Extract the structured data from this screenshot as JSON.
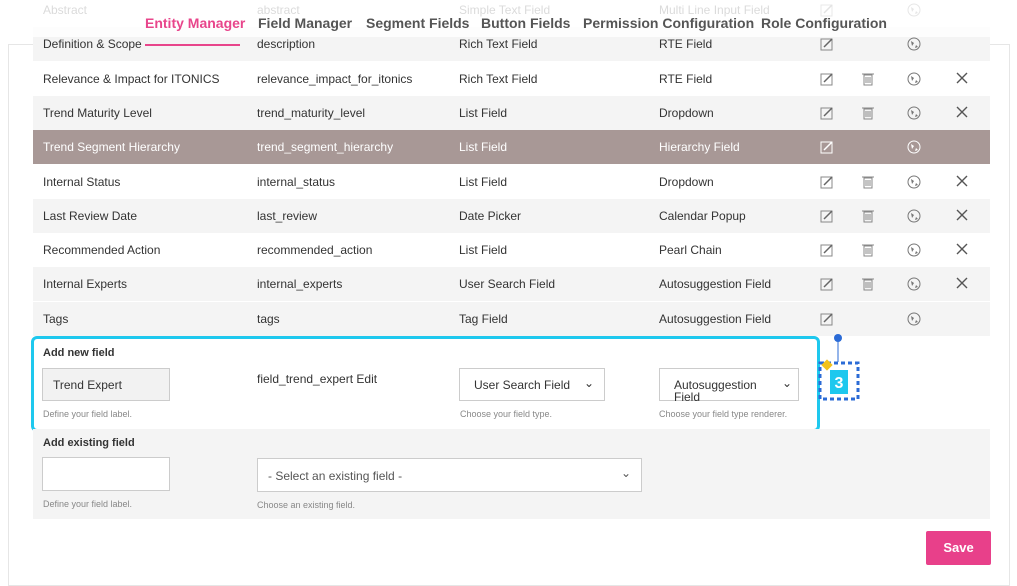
{
  "tabs": [
    "Entity Manager",
    "Field Manager",
    "Segment Fields",
    "Button Fields",
    "Permission Configuration",
    "Role Configuration"
  ],
  "table": {
    "rows": [
      [
        "Abstract",
        "abstract",
        "Simple Text Field",
        "Multi Line Input Field"
      ],
      [
        "Definition & Scope",
        "description",
        "Rich Text Field",
        "RTE Field"
      ],
      [
        "Relevance & Impact for ITONICS",
        "relevance_impact_for_itonics",
        "Rich Text Field",
        "RTE Field"
      ],
      [
        "Trend Maturity Level",
        "trend_maturity_level",
        "List Field",
        "Dropdown"
      ],
      [
        "Trend Segment Hierarchy",
        "trend_segment_hierarchy",
        "List Field",
        "Hierarchy Field"
      ],
      [
        "Internal Status",
        "internal_status",
        "List Field",
        "Dropdown"
      ],
      [
        "Last Review Date",
        "last_review",
        "Date Picker",
        "Calendar Popup"
      ],
      [
        "Recommended Action",
        "recommended_action",
        "List Field",
        "Pearl Chain"
      ],
      [
        "Internal Experts",
        "internal_experts",
        "User Search Field",
        "Autosuggestion Field"
      ],
      [
        "Tags",
        "tags",
        "Tag Field",
        "Autosuggestion Field"
      ]
    ]
  },
  "add_new": {
    "title": "Add new field",
    "label_value": "Trend Expert",
    "label_hint": "Define your field label.",
    "machine_name": "field_trend_expert Edit",
    "type_value": "User Search Field",
    "type_hint": "Choose your field type.",
    "renderer_value": "Autosuggestion Field",
    "renderer_hint": "Choose your field type renderer.",
    "badge": "3"
  },
  "add_existing": {
    "title": "Add existing field",
    "label_hint": "Define your field label.",
    "select_value": "- Select an existing field -",
    "select_hint": "Choose an existing field."
  },
  "save": "Save"
}
